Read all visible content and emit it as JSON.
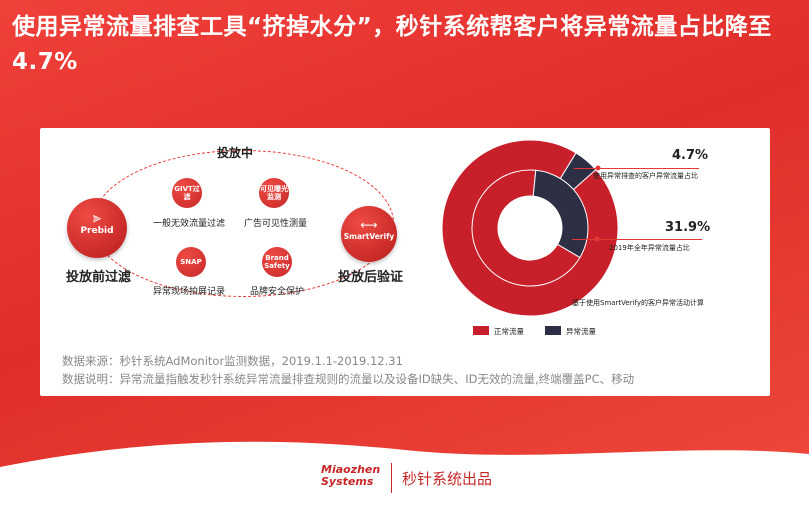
{
  "title": "使用异常流量排查工具“挤掉水分”，秒针系统帮客户将异常流量占比降至4.7%",
  "flow": {
    "center_title": "投放中",
    "prebid": {
      "logo": "Prebid",
      "label": "投放前过滤"
    },
    "smartverify": {
      "logo": "SmartVerify",
      "label": "投放后验证"
    },
    "items": [
      {
        "icon_text": "GIVT过滤",
        "label": "一般无效流量过滤"
      },
      {
        "icon_text": "可见曝光监测",
        "label": "广告可见性测量"
      },
      {
        "icon_text": "SNAP",
        "label": "异常现场拍屏记录"
      },
      {
        "icon_text": "Brand Safety",
        "label": "品牌安全保护"
      }
    ]
  },
  "chart_data": {
    "type": "pie",
    "subtitle": "基于使用SmartVerify的客户异常活动计算",
    "series": [
      {
        "name": "使用异常排查的客户异常流量占比",
        "values": [
          95.3,
          4.7
        ]
      },
      {
        "name": "2019年全年异常流量占比",
        "values": [
          68.1,
          31.9
        ]
      }
    ],
    "categories": [
      "正常流量",
      "异常流量"
    ],
    "annotations": [
      {
        "value_label": "4.7%",
        "text": "使用异常排查的客户异常流量占比"
      },
      {
        "value_label": "31.9%",
        "text": "2019年全年异常流量占比"
      }
    ],
    "colors": {
      "normal": "#c8202a",
      "abnormal": "#2d2f45"
    }
  },
  "notes": {
    "source": "数据来源：秒针系统AdMonitor监测数据，2019.1.1-2019.12.31",
    "desc": "数据说明：异常流量指触发秒针系统异常流量排查规则的流量以及设备ID缺失、ID无效的流量,终端覆盖PC、移动"
  },
  "footer": {
    "brand_line1": "Miaozhen",
    "brand_line2": "Systems",
    "product": "秒针系统出品"
  }
}
